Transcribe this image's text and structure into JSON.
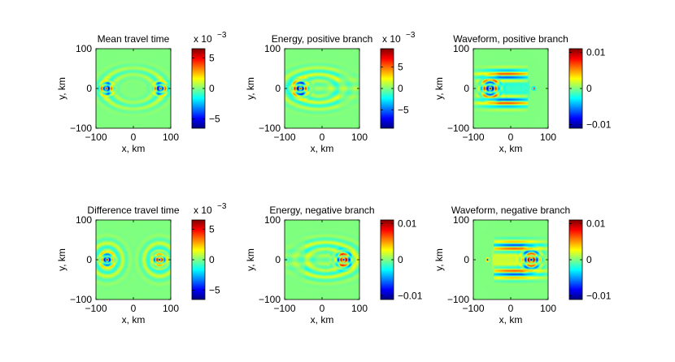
{
  "figure": {
    "background": "#ffffff",
    "colormap": "jet"
  },
  "chart_data": [
    {
      "type": "heatmap",
      "title": "Mean travel time",
      "xlabel": "x, km",
      "ylabel": "y, km",
      "xlim": [
        -100,
        100
      ],
      "ylim": [
        -100,
        100
      ],
      "xticks": [
        "−100",
        "0",
        "100"
      ],
      "yticks": [
        "100",
        "0",
        "−100"
      ],
      "pattern": "mean",
      "colorbar": {
        "range": [
          -0.0065,
          0.0065
        ],
        "ticks": [
          5,
          0,
          -5
        ],
        "tick_labels": [
          "5",
          "0",
          "−5"
        ],
        "multiplier": "x 10",
        "exponent": "−3"
      }
    },
    {
      "type": "heatmap",
      "title": "Energy, positive branch",
      "xlabel": "x, km",
      "ylabel": "y, km",
      "xlim": [
        -100,
        100
      ],
      "ylim": [
        -100,
        100
      ],
      "xticks": [
        "−100",
        "0",
        "100"
      ],
      "yticks": [
        "100",
        "0",
        "−100"
      ],
      "pattern": "energy_pos",
      "colorbar": {
        "range": [
          -0.0093,
          0.0093
        ],
        "ticks": [
          5,
          0,
          -5
        ],
        "tick_labels": [
          "5",
          "0",
          "−5"
        ],
        "multiplier": "x 10",
        "exponent": "−3"
      }
    },
    {
      "type": "heatmap",
      "title": "Waveform, positive branch",
      "xlabel": "x, km",
      "ylabel": "y, km",
      "xlim": [
        -100,
        100
      ],
      "ylim": [
        -100,
        100
      ],
      "xticks": [
        "−100",
        "0",
        "100"
      ],
      "yticks": [
        "100",
        "0",
        "−100"
      ],
      "pattern": "wave_pos",
      "colorbar": {
        "range": [
          -0.011,
          0.011
        ],
        "ticks": [
          0.01,
          0,
          -0.01
        ],
        "tick_labels": [
          "0.01",
          "0",
          "−0.01"
        ]
      }
    },
    {
      "type": "heatmap",
      "title": "Difference travel time",
      "xlabel": "x, km",
      "ylabel": "y, km",
      "xlim": [
        -100,
        100
      ],
      "ylim": [
        -100,
        100
      ],
      "xticks": [
        "−100",
        "0",
        "100"
      ],
      "yticks": [
        "100",
        "0",
        "−100"
      ],
      "pattern": "diff",
      "colorbar": {
        "range": [
          -0.0065,
          0.0065
        ],
        "ticks": [
          5,
          0,
          -5
        ],
        "tick_labels": [
          "5",
          "0",
          "−5"
        ],
        "multiplier": "x 10",
        "exponent": "−3"
      }
    },
    {
      "type": "heatmap",
      "title": "Energy, negative branch",
      "xlabel": "x, km",
      "ylabel": "y, km",
      "xlim": [
        -100,
        100
      ],
      "ylim": [
        -100,
        100
      ],
      "xticks": [
        "−100",
        "0",
        "100"
      ],
      "yticks": [
        "100",
        "0",
        "−100"
      ],
      "pattern": "energy_neg",
      "colorbar": {
        "range": [
          -0.011,
          0.011
        ],
        "ticks": [
          0.01,
          0,
          -0.01
        ],
        "tick_labels": [
          "0.01",
          "0",
          "−0.01"
        ]
      }
    },
    {
      "type": "heatmap",
      "title": "Waveform, negative branch",
      "xlabel": "x, km",
      "ylabel": "y, km",
      "xlim": [
        -100,
        100
      ],
      "ylim": [
        -100,
        100
      ],
      "xticks": [
        "−100",
        "0",
        "100"
      ],
      "yticks": [
        "100",
        "0",
        "−100"
      ],
      "pattern": "wave_neg",
      "colorbar": {
        "range": [
          -0.011,
          0.011
        ],
        "ticks": [
          0.01,
          0,
          -0.01
        ],
        "tick_labels": [
          "0.01",
          "0",
          "−0.01"
        ]
      }
    }
  ]
}
